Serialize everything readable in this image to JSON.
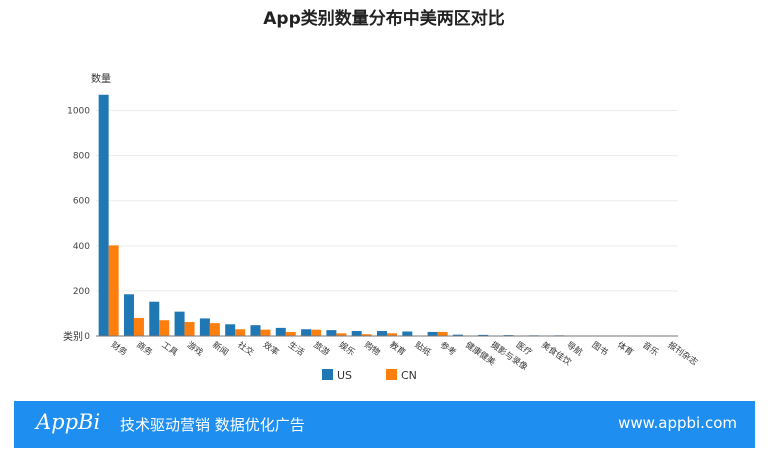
{
  "chart_data": {
    "type": "bar",
    "title": "App类别数量分布中美两区对比",
    "ylabel": "数量",
    "xlabel": "类别",
    "ylim": [
      0,
      1100
    ],
    "yticks": [
      0,
      200,
      400,
      600,
      800,
      1000
    ],
    "legend_position": "bottom",
    "categories": [
      "财务",
      "商务",
      "工具",
      "游戏",
      "新闻",
      "社交",
      "效率",
      "生活",
      "旅游",
      "娱乐",
      "购物",
      "教育",
      "贴纸",
      "参考",
      "健康健美",
      "摄影与录像",
      "医疗",
      "美食佳饮",
      "导航",
      "图书",
      "体育",
      "音乐",
      "报刊杂志"
    ],
    "series": [
      {
        "name": "US",
        "color": "#1f77b4",
        "values": [
          1070,
          185,
          152,
          108,
          78,
          52,
          48,
          36,
          30,
          26,
          22,
          22,
          20,
          18,
          6,
          5,
          4,
          3,
          3,
          2,
          1,
          1,
          1
        ]
      },
      {
        "name": "CN",
        "color": "#ff7f0e",
        "values": [
          402,
          80,
          70,
          62,
          57,
          30,
          28,
          18,
          28,
          12,
          8,
          12,
          2,
          18,
          2,
          2,
          2,
          1,
          2,
          1,
          1,
          1,
          1
        ]
      }
    ]
  },
  "footer": {
    "logo": "AppBi",
    "slogan": "技术驱动营销 数据优化广告",
    "url": "www.appbi.com"
  }
}
